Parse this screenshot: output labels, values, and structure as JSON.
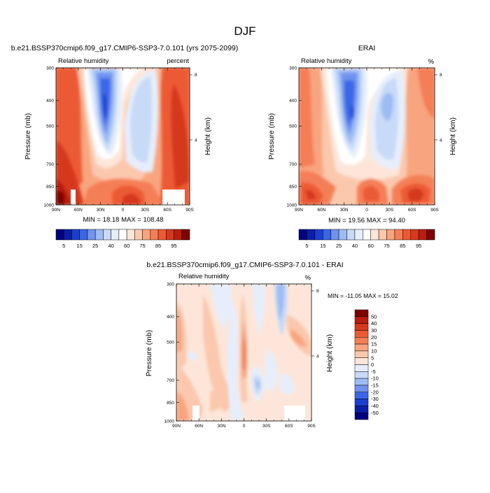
{
  "figure_title": "DJF",
  "colors": {
    "rh_palette": [
      "#00007f",
      "#0a1fa8",
      "#1a3fd0",
      "#3a66e6",
      "#6f93ee",
      "#9ebcf4",
      "#c7daf8",
      "#e6eefb",
      "#ffffff",
      "#fde6d9",
      "#fbc8ad",
      "#f8a57f",
      "#f47f56",
      "#ec5a35",
      "#d6391e",
      "#b91d0f",
      "#7f0000"
    ],
    "diff_palette": [
      "#00007f",
      "#0a1fa8",
      "#1a3fd0",
      "#3a66e6",
      "#6f93ee",
      "#9ebcf4",
      "#c7daf8",
      "#e6eefb",
      "#fde6d9",
      "#fbc8ad",
      "#f8a57f",
      "#f47f56",
      "#ec5a35",
      "#d6391e",
      "#b91d0f",
      "#7f0000"
    ]
  },
  "chart_data": [
    {
      "type": "heatmap",
      "title": "b.e21.BSSP370cmip6.f09_g17.CMIP6-SSP3-7.0.101 (yrs 2075-2099)",
      "variable": "Relative humidity",
      "units": "percent",
      "ylabel": "Pressure (mb)",
      "y2label": "Height (km)",
      "x_ticks": [
        "90N",
        "60N",
        "30N",
        "0",
        "30S",
        "60S",
        "90S"
      ],
      "y_ticks": [
        300,
        400,
        500,
        700,
        850,
        1000
      ],
      "y2_ticks": [
        8,
        4
      ],
      "stats": "MIN = 18.18  MAX = 108.48",
      "colorbar_labels": [
        "5",
        "15",
        "25",
        "40",
        "60",
        "75",
        "85",
        "95"
      ]
    },
    {
      "type": "heatmap",
      "title": "ERAI",
      "variable": "Relative humidity",
      "units": "%",
      "ylabel": "Pressure (mb)",
      "y2label": "Height (km)",
      "x_ticks": [
        "90N",
        "60N",
        "30N",
        "0",
        "30S",
        "60S",
        "90S"
      ],
      "y_ticks": [
        300,
        400,
        500,
        700,
        850,
        1000
      ],
      "y2_ticks": [
        8,
        4
      ],
      "stats": "MIN = 19.56  MAX = 94.40",
      "colorbar_labels": [
        "5",
        "15",
        "25",
        "40",
        "60",
        "75",
        "85",
        "95"
      ]
    },
    {
      "type": "heatmap",
      "title": "b.e21.BSSP370cmip6.f09_g17.CMIP6-SSP3-7.0.101 - ERAI",
      "variable": "Relative humidity",
      "units": "%",
      "ylabel": "Pressure (mb)",
      "y2label": "Height (km)",
      "x_ticks": [
        "90N",
        "60N",
        "30N",
        "0",
        "30S",
        "60S",
        "90S"
      ],
      "y_ticks": [
        300,
        400,
        500,
        700,
        850,
        1000
      ],
      "y2_ticks": [
        8,
        4
      ],
      "stats": "MIN = -11.05  MAX = 15.02",
      "colorbar_labels": [
        "50",
        "40",
        "30",
        "20",
        "15",
        "10",
        "5",
        "0",
        "-5",
        "-10",
        "-15",
        "-20",
        "-30",
        "-40",
        "-50"
      ]
    }
  ]
}
